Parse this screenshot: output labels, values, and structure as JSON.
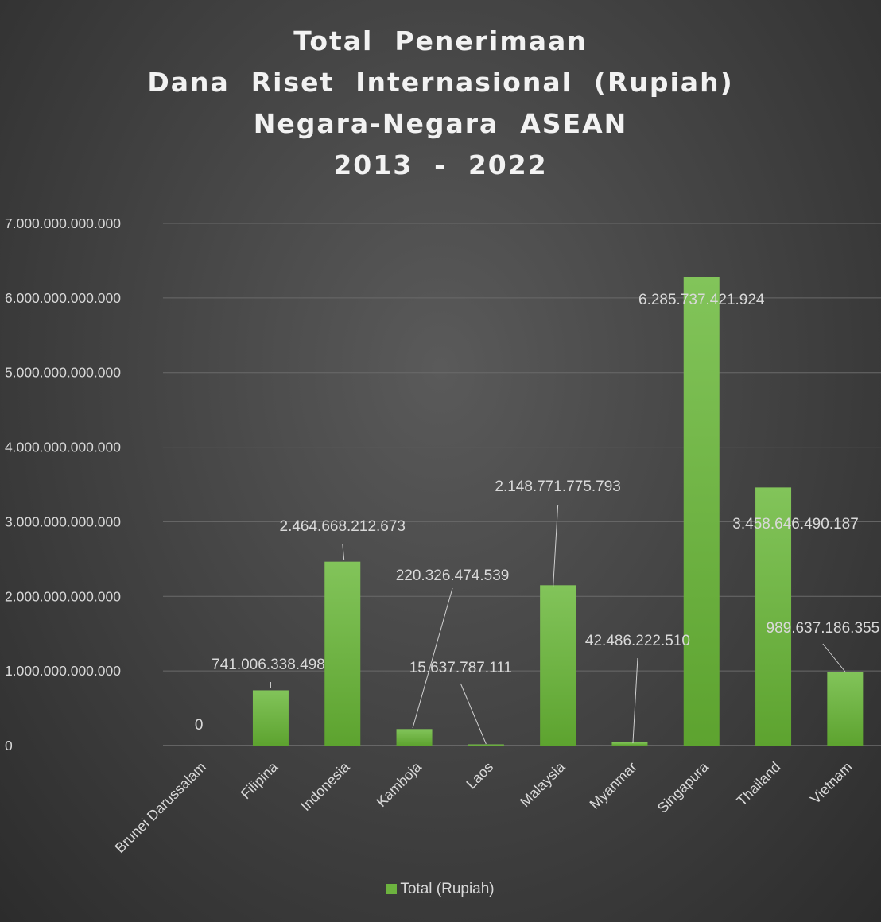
{
  "chart_data": {
    "type": "bar",
    "title_lines": [
      "Total  Penerimaan",
      "Dana  Riset  Internasional  (Rupiah)",
      "Negara-Negara  ASEAN",
      "2013  -  2022"
    ],
    "categories": [
      "Brunei Darussalam",
      "Filipina",
      "Indonesia",
      "Kamboja",
      "Laos",
      "Malaysia",
      "Myanmar",
      "Singapura",
      "Thailand",
      "Vietnam"
    ],
    "series": [
      {
        "name": "Total (Rupiah)",
        "values": [
          0,
          741006338498,
          2464668212673,
          220326474539,
          15637787111,
          2148771775793,
          42486222510,
          6285737421924,
          3458646490187,
          989637186355
        ],
        "labels": [
          "0",
          "741.006.338.498",
          "2.464.668.212.673",
          "220.326.474.539",
          "15.637.787.111",
          "2.148.771.775.793",
          "42.486.222.510",
          "6.285.737.421.924",
          "3.458.646.490.187",
          "989.637.186.355"
        ]
      }
    ],
    "ylim": [
      0,
      7000000000000
    ],
    "yticks": [
      "0",
      "1.000.000.000.000",
      "2.000.000.000.000",
      "3.000.000.000.000",
      "4.000.000.000.000",
      "5.000.000.000.000",
      "6.000.000.000.000",
      "7.000.000.000.000"
    ],
    "xlabel": "",
    "ylabel": "",
    "grid": true,
    "legend": "bottom",
    "colors": {
      "bar": "#6db33f",
      "bar_light": "#82c45a",
      "grid": "#6a6a6a",
      "text": "#d9d9d9"
    }
  }
}
